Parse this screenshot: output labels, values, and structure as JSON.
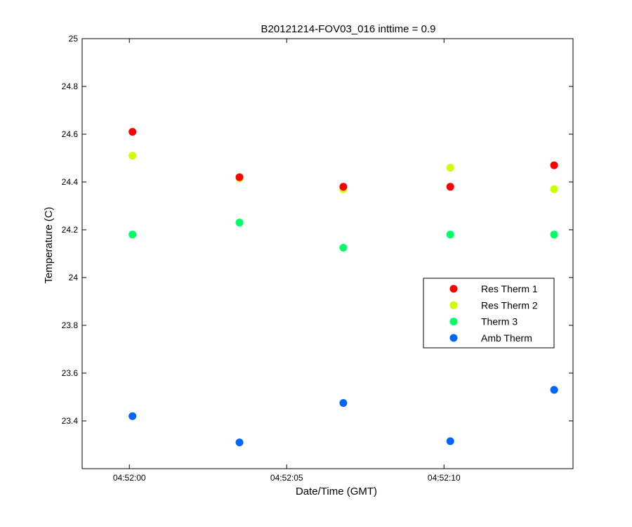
{
  "chart_data": {
    "type": "scatter",
    "title": "B20121214-FOV03_016 inttime = 0.9",
    "xlabel": "Date/Time (GMT)",
    "ylabel": "Temperature (C)",
    "x_is_time": true,
    "x_ticks": [
      "04:52:00",
      "04:52:05",
      "04:52:10"
    ],
    "y_ticks": [
      "23.4",
      "23.6",
      "23.8",
      "24",
      "24.2",
      "24.4",
      "24.6",
      "24.8",
      "25"
    ],
    "xlim": [
      "04:51:58.5",
      "04:52:14.1"
    ],
    "ylim": [
      23.2,
      25.0
    ],
    "grid": false,
    "legend_position": "right",
    "x": [
      "04:52:00.1",
      "04:52:03.5",
      "04:52:06.8",
      "04:52:10.2",
      "04:52:13.5"
    ],
    "series": [
      {
        "name": "Res Therm 1",
        "color": "#ff0000",
        "values": [
          24.61,
          24.42,
          24.38,
          24.38,
          24.47
        ]
      },
      {
        "name": "Res Therm 2",
        "color": "#ccff00",
        "values": [
          24.51,
          24.415,
          24.37,
          24.46,
          24.37
        ]
      },
      {
        "name": "Therm 3",
        "color": "#00ff66",
        "values": [
          24.18,
          24.23,
          24.125,
          24.18,
          24.18
        ]
      },
      {
        "name": "Amb Therm",
        "color": "#0066ff",
        "values": [
          23.42,
          23.31,
          23.475,
          23.315,
          23.53
        ]
      }
    ]
  }
}
